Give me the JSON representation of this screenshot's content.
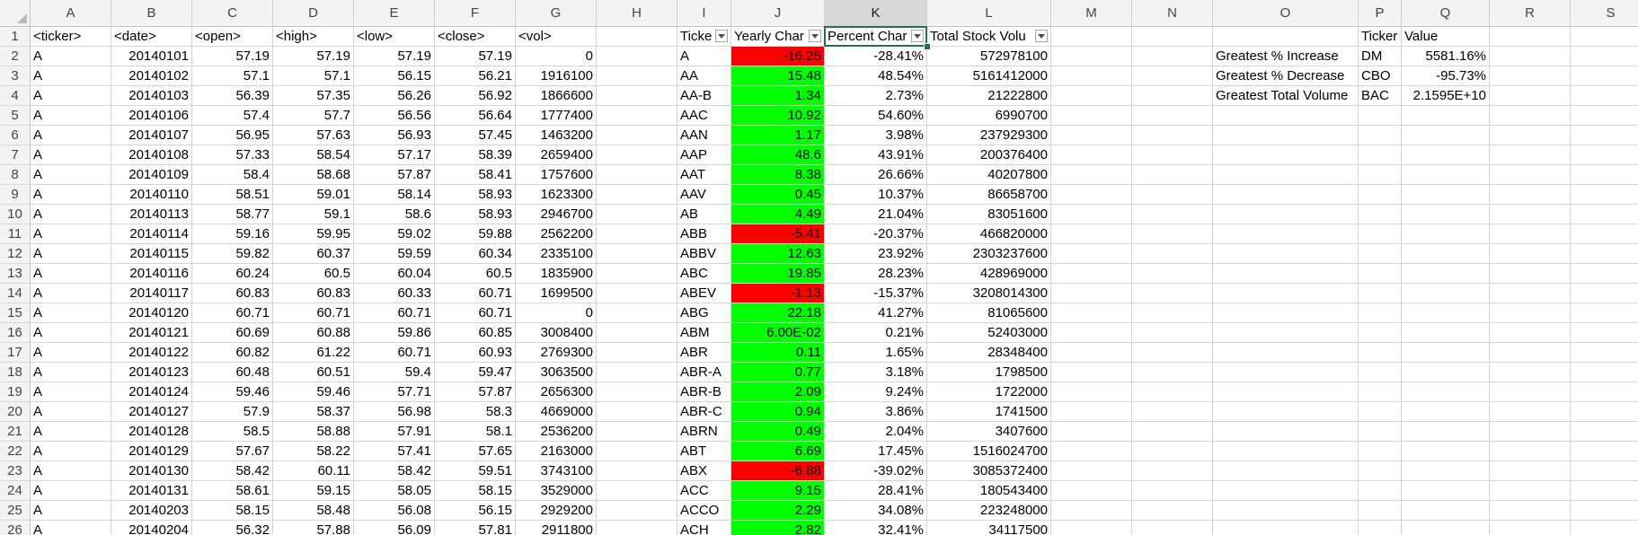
{
  "columns": [
    "A",
    "B",
    "C",
    "D",
    "E",
    "F",
    "G",
    "H",
    "I",
    "J",
    "K",
    "L",
    "M",
    "N",
    "O",
    "P",
    "Q",
    "R",
    "S"
  ],
  "selected_column": "K",
  "headers": {
    "ticker": "<ticker>",
    "date": "<date>",
    "open": "<open>",
    "high": "<high>",
    "low": "<low>",
    "close": "<close>",
    "vol": "<vol>",
    "summary_ticker": "Ticke",
    "yearly_change": "Yearly Char",
    "percent_change": "Percent Char",
    "total_volume": "Total Stock Volu",
    "p_ticker": "Ticker",
    "q_value": "Value"
  },
  "raw_rows": [
    {
      "row": "2",
      "ticker": "A",
      "date": "20140101",
      "open": "57.19",
      "high": "57.19",
      "low": "57.19",
      "close": "57.19",
      "vol": "0"
    },
    {
      "row": "3",
      "ticker": "A",
      "date": "20140102",
      "open": "57.1",
      "high": "57.1",
      "low": "56.15",
      "close": "56.21",
      "vol": "1916100"
    },
    {
      "row": "4",
      "ticker": "A",
      "date": "20140103",
      "open": "56.39",
      "high": "57.35",
      "low": "56.26",
      "close": "56.92",
      "vol": "1866600"
    },
    {
      "row": "5",
      "ticker": "A",
      "date": "20140106",
      "open": "57.4",
      "high": "57.7",
      "low": "56.56",
      "close": "56.64",
      "vol": "1777400"
    },
    {
      "row": "6",
      "ticker": "A",
      "date": "20140107",
      "open": "56.95",
      "high": "57.63",
      "low": "56.93",
      "close": "57.45",
      "vol": "1463200"
    },
    {
      "row": "7",
      "ticker": "A",
      "date": "20140108",
      "open": "57.33",
      "high": "58.54",
      "low": "57.17",
      "close": "58.39",
      "vol": "2659400"
    },
    {
      "row": "8",
      "ticker": "A",
      "date": "20140109",
      "open": "58.4",
      "high": "58.68",
      "low": "57.87",
      "close": "58.41",
      "vol": "1757600"
    },
    {
      "row": "9",
      "ticker": "A",
      "date": "20140110",
      "open": "58.51",
      "high": "59.01",
      "low": "58.14",
      "close": "58.93",
      "vol": "1623300"
    },
    {
      "row": "10",
      "ticker": "A",
      "date": "20140113",
      "open": "58.77",
      "high": "59.1",
      "low": "58.6",
      "close": "58.93",
      "vol": "2946700"
    },
    {
      "row": "11",
      "ticker": "A",
      "date": "20140114",
      "open": "59.16",
      "high": "59.95",
      "low": "59.02",
      "close": "59.88",
      "vol": "2562200"
    },
    {
      "row": "12",
      "ticker": "A",
      "date": "20140115",
      "open": "59.82",
      "high": "60.37",
      "low": "59.59",
      "close": "60.34",
      "vol": "2335100"
    },
    {
      "row": "13",
      "ticker": "A",
      "date": "20140116",
      "open": "60.24",
      "high": "60.5",
      "low": "60.04",
      "close": "60.5",
      "vol": "1835900"
    },
    {
      "row": "14",
      "ticker": "A",
      "date": "20140117",
      "open": "60.83",
      "high": "60.83",
      "low": "60.33",
      "close": "60.71",
      "vol": "1699500"
    },
    {
      "row": "15",
      "ticker": "A",
      "date": "20140120",
      "open": "60.71",
      "high": "60.71",
      "low": "60.71",
      "close": "60.71",
      "vol": "0"
    },
    {
      "row": "16",
      "ticker": "A",
      "date": "20140121",
      "open": "60.69",
      "high": "60.88",
      "low": "59.86",
      "close": "60.85",
      "vol": "3008400"
    },
    {
      "row": "17",
      "ticker": "A",
      "date": "20140122",
      "open": "60.82",
      "high": "61.22",
      "low": "60.71",
      "close": "60.93",
      "vol": "2769300"
    },
    {
      "row": "18",
      "ticker": "A",
      "date": "20140123",
      "open": "60.48",
      "high": "60.51",
      "low": "59.4",
      "close": "59.47",
      "vol": "3063500"
    },
    {
      "row": "19",
      "ticker": "A",
      "date": "20140124",
      "open": "59.46",
      "high": "59.46",
      "low": "57.71",
      "close": "57.87",
      "vol": "2656300"
    },
    {
      "row": "20",
      "ticker": "A",
      "date": "20140127",
      "open": "57.9",
      "high": "58.37",
      "low": "56.98",
      "close": "58.3",
      "vol": "4669000"
    },
    {
      "row": "21",
      "ticker": "A",
      "date": "20140128",
      "open": "58.5",
      "high": "58.88",
      "low": "57.91",
      "close": "58.1",
      "vol": "2536200"
    },
    {
      "row": "22",
      "ticker": "A",
      "date": "20140129",
      "open": "57.67",
      "high": "58.22",
      "low": "57.41",
      "close": "57.65",
      "vol": "2163000"
    },
    {
      "row": "23",
      "ticker": "A",
      "date": "20140130",
      "open": "58.42",
      "high": "60.11",
      "low": "58.42",
      "close": "59.51",
      "vol": "3743100"
    },
    {
      "row": "24",
      "ticker": "A",
      "date": "20140131",
      "open": "58.61",
      "high": "59.15",
      "low": "58.05",
      "close": "58.15",
      "vol": "3529000"
    },
    {
      "row": "25",
      "ticker": "A",
      "date": "20140203",
      "open": "58.15",
      "high": "58.48",
      "low": "56.08",
      "close": "56.15",
      "vol": "2929200"
    },
    {
      "row": "26",
      "ticker": "A",
      "date": "20140204",
      "open": "56.32",
      "high": "57.88",
      "low": "56.09",
      "close": "57.81",
      "vol": "2911800"
    }
  ],
  "summary_rows": [
    {
      "ticker": "A",
      "yearly_change": "-16.25",
      "percent_change": "-28.41%",
      "total_volume": "572978100",
      "sign": "neg"
    },
    {
      "ticker": "AA",
      "yearly_change": "15.48",
      "percent_change": "48.54%",
      "total_volume": "5161412000",
      "sign": "pos"
    },
    {
      "ticker": "AA-B",
      "yearly_change": "1.34",
      "percent_change": "2.73%",
      "total_volume": "21222800",
      "sign": "pos"
    },
    {
      "ticker": "AAC",
      "yearly_change": "10.92",
      "percent_change": "54.60%",
      "total_volume": "6990700",
      "sign": "pos"
    },
    {
      "ticker": "AAN",
      "yearly_change": "1.17",
      "percent_change": "3.98%",
      "total_volume": "237929300",
      "sign": "pos"
    },
    {
      "ticker": "AAP",
      "yearly_change": "48.6",
      "percent_change": "43.91%",
      "total_volume": "200376400",
      "sign": "pos"
    },
    {
      "ticker": "AAT",
      "yearly_change": "8.38",
      "percent_change": "26.66%",
      "total_volume": "40207800",
      "sign": "pos"
    },
    {
      "ticker": "AAV",
      "yearly_change": "0.45",
      "percent_change": "10.37%",
      "total_volume": "86658700",
      "sign": "pos"
    },
    {
      "ticker": "AB",
      "yearly_change": "4.49",
      "percent_change": "21.04%",
      "total_volume": "83051600",
      "sign": "pos"
    },
    {
      "ticker": "ABB",
      "yearly_change": "-5.41",
      "percent_change": "-20.37%",
      "total_volume": "466820000",
      "sign": "neg"
    },
    {
      "ticker": "ABBV",
      "yearly_change": "12.63",
      "percent_change": "23.92%",
      "total_volume": "2303237600",
      "sign": "pos"
    },
    {
      "ticker": "ABC",
      "yearly_change": "19.85",
      "percent_change": "28.23%",
      "total_volume": "428969000",
      "sign": "pos"
    },
    {
      "ticker": "ABEV",
      "yearly_change": "-1.13",
      "percent_change": "-15.37%",
      "total_volume": "3208014300",
      "sign": "neg"
    },
    {
      "ticker": "ABG",
      "yearly_change": "22.18",
      "percent_change": "41.27%",
      "total_volume": "81065600",
      "sign": "pos"
    },
    {
      "ticker": "ABM",
      "yearly_change": "6.00E-02",
      "percent_change": "0.21%",
      "total_volume": "52403000",
      "sign": "pos"
    },
    {
      "ticker": "ABR",
      "yearly_change": "0.11",
      "percent_change": "1.65%",
      "total_volume": "28348400",
      "sign": "pos"
    },
    {
      "ticker": "ABR-A",
      "yearly_change": "0.77",
      "percent_change": "3.18%",
      "total_volume": "1798500",
      "sign": "pos"
    },
    {
      "ticker": "ABR-B",
      "yearly_change": "2.09",
      "percent_change": "9.24%",
      "total_volume": "1722000",
      "sign": "pos"
    },
    {
      "ticker": "ABR-C",
      "yearly_change": "0.94",
      "percent_change": "3.86%",
      "total_volume": "1741500",
      "sign": "pos"
    },
    {
      "ticker": "ABRN",
      "yearly_change": "0.49",
      "percent_change": "2.04%",
      "total_volume": "3407600",
      "sign": "pos"
    },
    {
      "ticker": "ABT",
      "yearly_change": "6.69",
      "percent_change": "17.45%",
      "total_volume": "1516024700",
      "sign": "pos"
    },
    {
      "ticker": "ABX",
      "yearly_change": "-6.88",
      "percent_change": "-39.02%",
      "total_volume": "3085372400",
      "sign": "neg"
    },
    {
      "ticker": "ACC",
      "yearly_change": "9.15",
      "percent_change": "28.41%",
      "total_volume": "180543400",
      "sign": "pos"
    },
    {
      "ticker": "ACCO",
      "yearly_change": "2.29",
      "percent_change": "34.08%",
      "total_volume": "223248000",
      "sign": "pos"
    },
    {
      "ticker": "ACH",
      "yearly_change": "2.82",
      "percent_change": "32.41%",
      "total_volume": "34117500",
      "sign": "pos"
    }
  ],
  "greatest": [
    {
      "label": "Greatest % Increase",
      "ticker": "DM",
      "value": "5581.16%"
    },
    {
      "label": "Greatest % Decrease",
      "ticker": "CBO",
      "value": "-95.73%"
    },
    {
      "label": "Greatest Total Volume",
      "ticker": "BAC",
      "value": "2.1595E+10"
    }
  ],
  "colors": {
    "positive": "#00ff00",
    "negative": "#ff0000",
    "accent": "#217346"
  }
}
